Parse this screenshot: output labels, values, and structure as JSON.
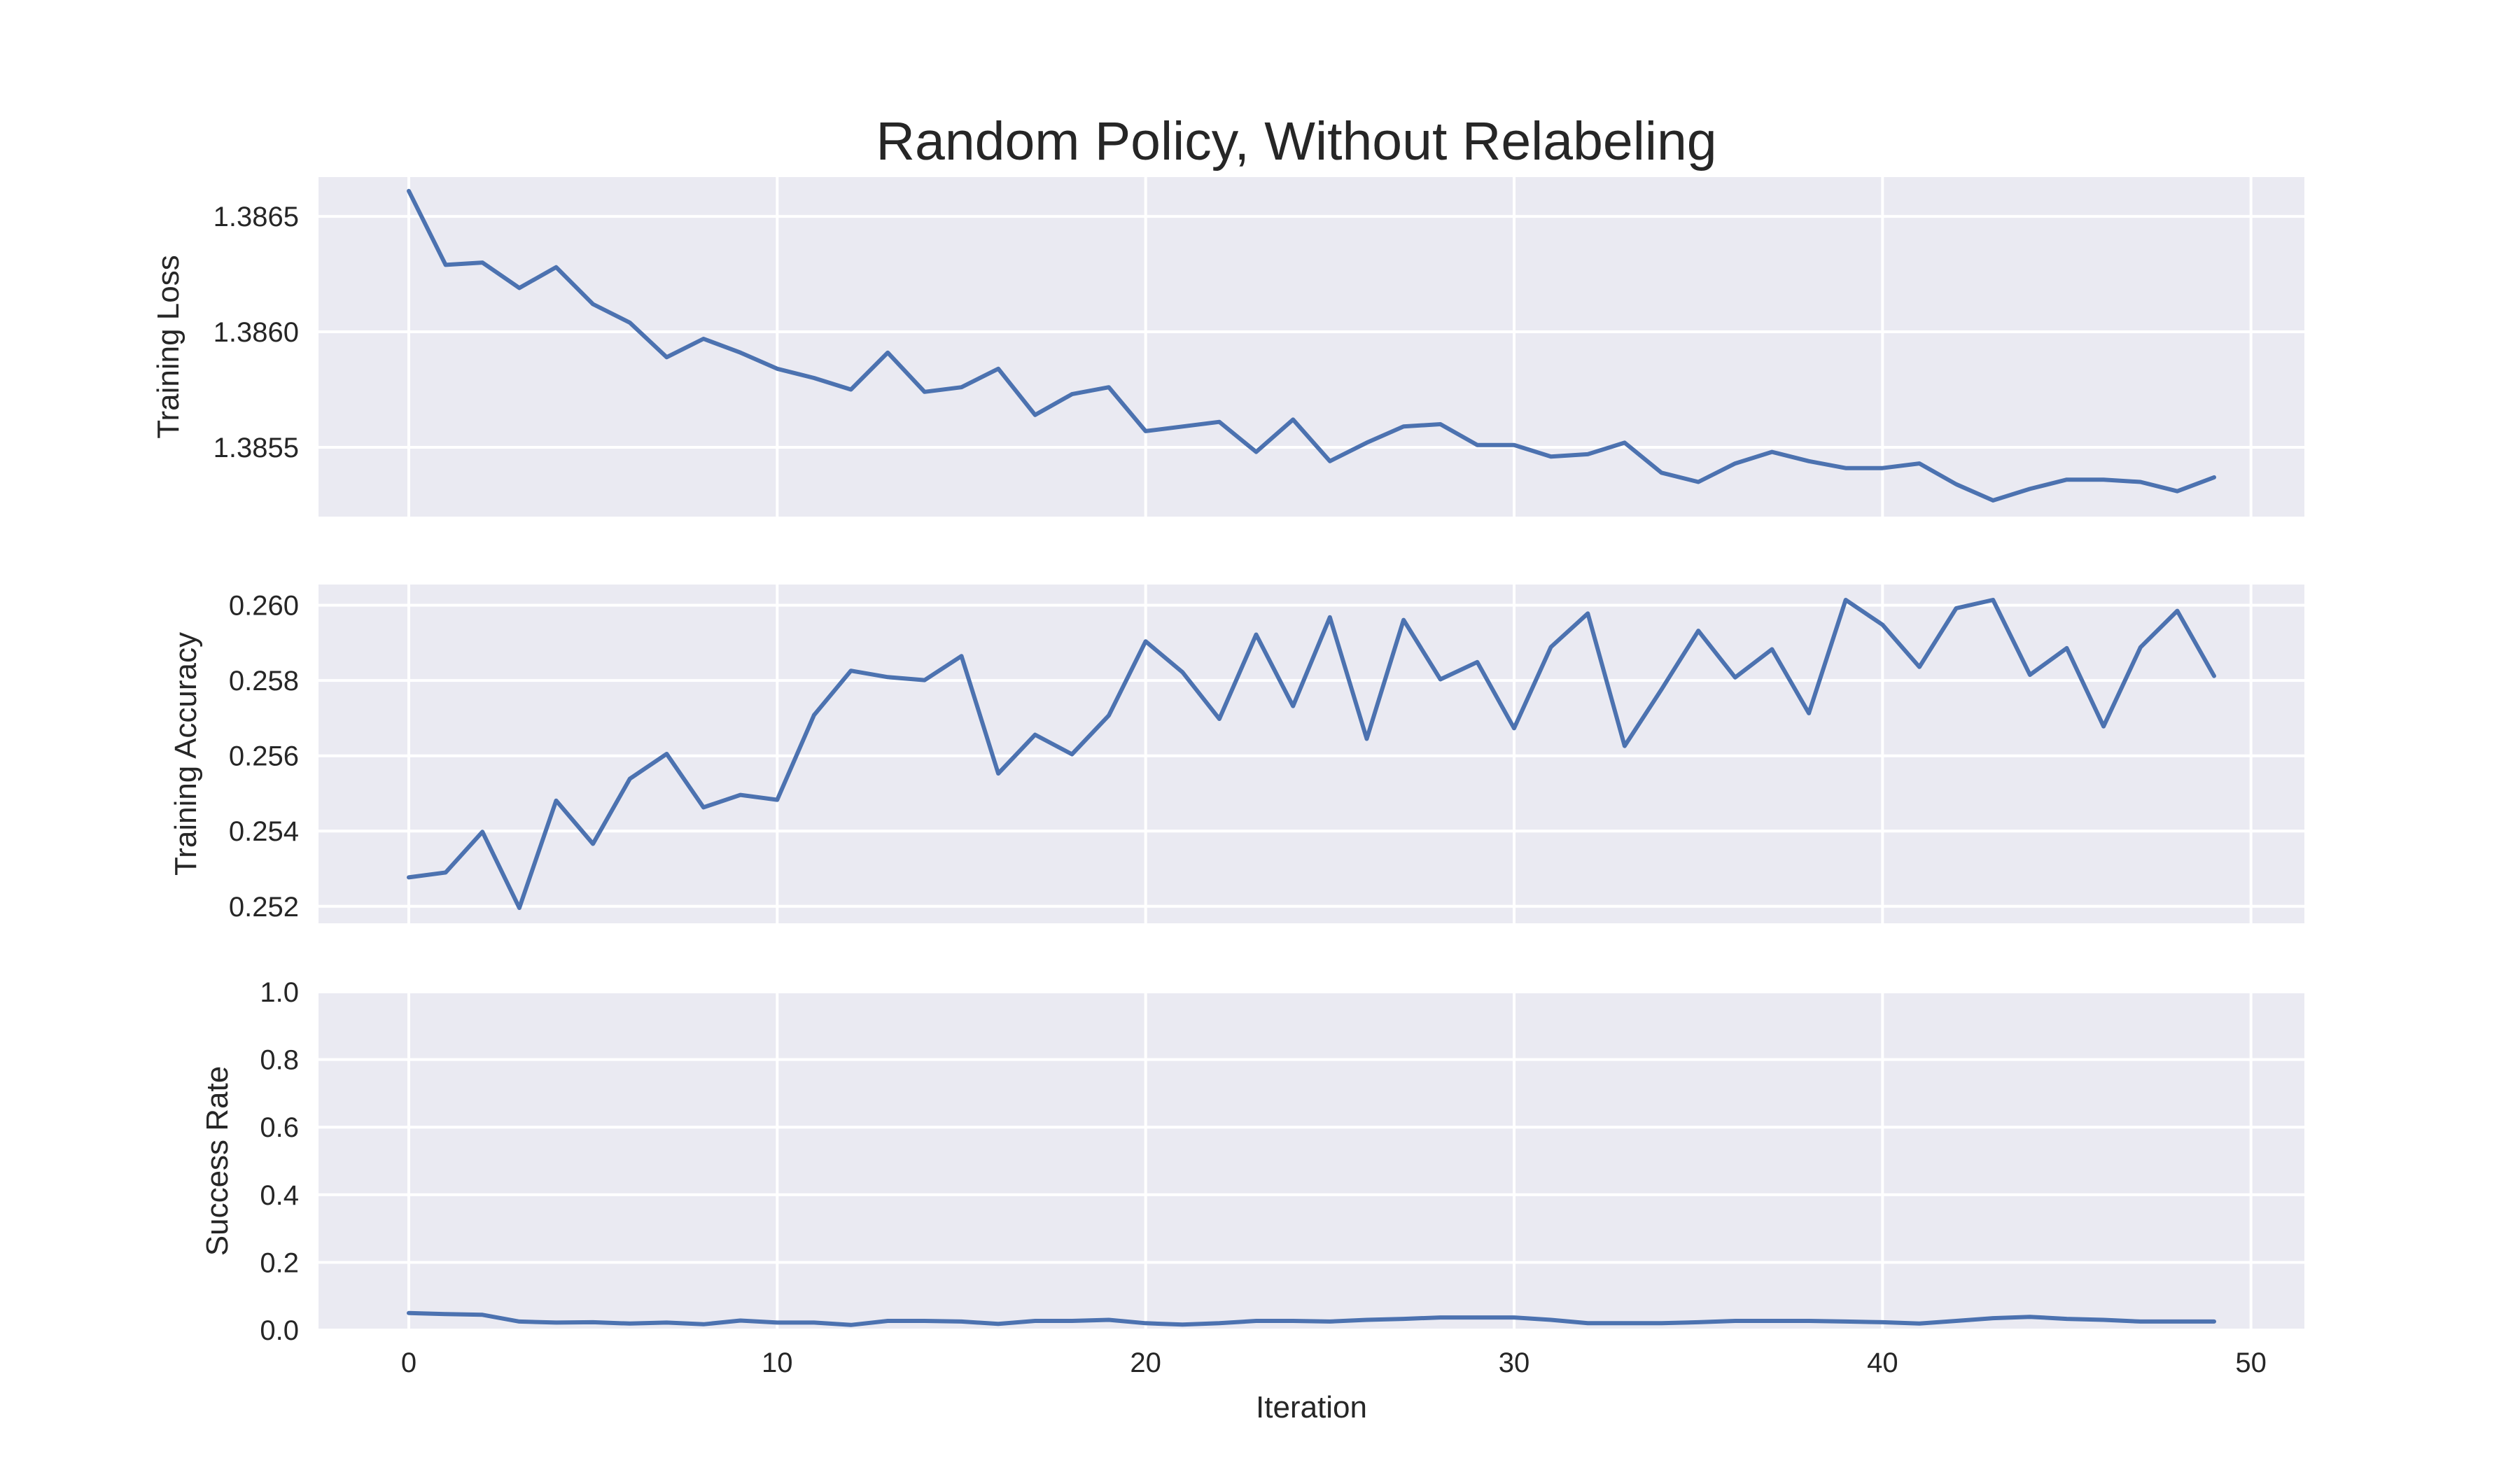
{
  "title": "Random Policy, Without Relabeling",
  "colors": {
    "panel_background": "#eaeaf2",
    "grid": "#ffffff",
    "line": "#4c72b0",
    "text": "#262626"
  },
  "chart_data": [
    {
      "type": "line",
      "title": "Random Policy, Without Relabeling",
      "xlabel": "",
      "ylabel": "Training Loss",
      "xlim": [
        -2.45,
        51.45
      ],
      "ylim": [
        1.3852,
        1.38667
      ],
      "xticks": [
        0,
        10,
        20,
        30,
        40,
        50
      ],
      "show_xtick_labels": false,
      "yticks": [
        1.3855,
        1.386,
        1.3865
      ],
      "ytick_labels": [
        "1.3855",
        "1.3860",
        "1.3865"
      ],
      "grid": true,
      "legend": "none",
      "series": [
        {
          "x": [
            0,
            1,
            2,
            3,
            4,
            5,
            6,
            7,
            8,
            9,
            10,
            11,
            12,
            13,
            14,
            15,
            16,
            17,
            18,
            19,
            20,
            21,
            22,
            23,
            24,
            25,
            26,
            27,
            28,
            29,
            30,
            31,
            32,
            33,
            34,
            35,
            36,
            37,
            38,
            39,
            40,
            41,
            42,
            43,
            44,
            45,
            46,
            47,
            48,
            49
          ],
          "y": [
            1.38661,
            1.38629,
            1.3863,
            1.38619,
            1.38628,
            1.38612,
            1.38604,
            1.38589,
            1.38597,
            1.38591,
            1.38584,
            1.3858,
            1.38575,
            1.38591,
            1.38574,
            1.38576,
            1.38584,
            1.38564,
            1.38573,
            1.38576,
            1.38557,
            1.38559,
            1.38561,
            1.38548,
            1.38562,
            1.38544,
            1.38552,
            1.38559,
            1.3856,
            1.38551,
            1.38551,
            1.38546,
            1.38547,
            1.38552,
            1.38539,
            1.38535,
            1.38543,
            1.38548,
            1.38544,
            1.38541,
            1.38541,
            1.38543,
            1.38534,
            1.38527,
            1.38532,
            1.38536,
            1.38536,
            1.38535,
            1.38531,
            1.38537
          ]
        }
      ]
    },
    {
      "type": "line",
      "xlabel": "",
      "ylabel": "Training Accuracy",
      "xlim": [
        -2.45,
        51.45
      ],
      "ylim": [
        0.25155,
        0.26055
      ],
      "xticks": [
        0,
        10,
        20,
        30,
        40,
        50
      ],
      "show_xtick_labels": false,
      "yticks": [
        0.252,
        0.254,
        0.256,
        0.258,
        0.26
      ],
      "ytick_labels": [
        "0.252",
        "0.254",
        "0.256",
        "0.258",
        "0.260"
      ],
      "grid": true,
      "legend": "none",
      "series": [
        {
          "x": [
            0,
            1,
            2,
            3,
            4,
            5,
            6,
            7,
            8,
            9,
            10,
            11,
            12,
            13,
            14,
            15,
            16,
            17,
            18,
            19,
            20,
            21,
            22,
            23,
            24,
            25,
            26,
            27,
            28,
            29,
            30,
            31,
            32,
            33,
            34,
            35,
            36,
            37,
            38,
            39,
            40,
            41,
            42,
            43,
            44,
            45,
            46,
            47,
            48,
            49
          ],
          "y": [
            0.25277,
            0.2529,
            0.25398,
            0.25196,
            0.25481,
            0.25366,
            0.25539,
            0.25605,
            0.25463,
            0.25496,
            0.25483,
            0.25708,
            0.25826,
            0.25809,
            0.25801,
            0.25865,
            0.25553,
            0.25656,
            0.25604,
            0.25707,
            0.25904,
            0.25822,
            0.25698,
            0.25922,
            0.25732,
            0.25968,
            0.25645,
            0.25961,
            0.25803,
            0.25849,
            0.25673,
            0.25889,
            0.25978,
            0.25626,
            0.25776,
            0.25932,
            0.25808,
            0.25883,
            0.25713,
            0.26014,
            0.25948,
            0.25836,
            0.25992,
            0.26014,
            0.25815,
            0.25886,
            0.25678,
            0.25888,
            0.25985,
            0.25812
          ]
        }
      ]
    },
    {
      "type": "line",
      "xlabel": "Iteration",
      "ylabel": "Success Rate",
      "xlim": [
        -2.45,
        51.45
      ],
      "ylim": [
        0.0,
        1.0
      ],
      "xticks": [
        0,
        10,
        20,
        30,
        40,
        50
      ],
      "xtick_labels": [
        "0",
        "10",
        "20",
        "30",
        "40",
        "50"
      ],
      "show_xtick_labels": true,
      "yticks": [
        0.0,
        0.2,
        0.4,
        0.6,
        0.8,
        1.0
      ],
      "ytick_labels": [
        "0.0",
        "0.2",
        "0.4",
        "0.6",
        "0.8",
        "1.0"
      ],
      "grid": true,
      "legend": "none",
      "series": [
        {
          "x": [
            0,
            1,
            2,
            3,
            4,
            5,
            6,
            7,
            8,
            9,
            10,
            11,
            12,
            13,
            14,
            15,
            16,
            17,
            18,
            19,
            20,
            21,
            22,
            23,
            24,
            25,
            26,
            27,
            28,
            29,
            30,
            31,
            32,
            33,
            34,
            35,
            36,
            37,
            38,
            39,
            40,
            41,
            42,
            43,
            44,
            45,
            46,
            47,
            48,
            49
          ],
          "y": [
            0.05,
            0.047,
            0.045,
            0.025,
            0.022,
            0.023,
            0.019,
            0.022,
            0.017,
            0.028,
            0.022,
            0.022,
            0.015,
            0.027,
            0.027,
            0.025,
            0.018,
            0.027,
            0.027,
            0.03,
            0.02,
            0.016,
            0.02,
            0.027,
            0.027,
            0.025,
            0.03,
            0.033,
            0.037,
            0.037,
            0.037,
            0.03,
            0.02,
            0.02,
            0.02,
            0.023,
            0.027,
            0.027,
            0.027,
            0.025,
            0.023,
            0.019,
            0.027,
            0.035,
            0.039,
            0.033,
            0.03,
            0.025,
            0.025,
            0.025
          ]
        }
      ]
    }
  ]
}
